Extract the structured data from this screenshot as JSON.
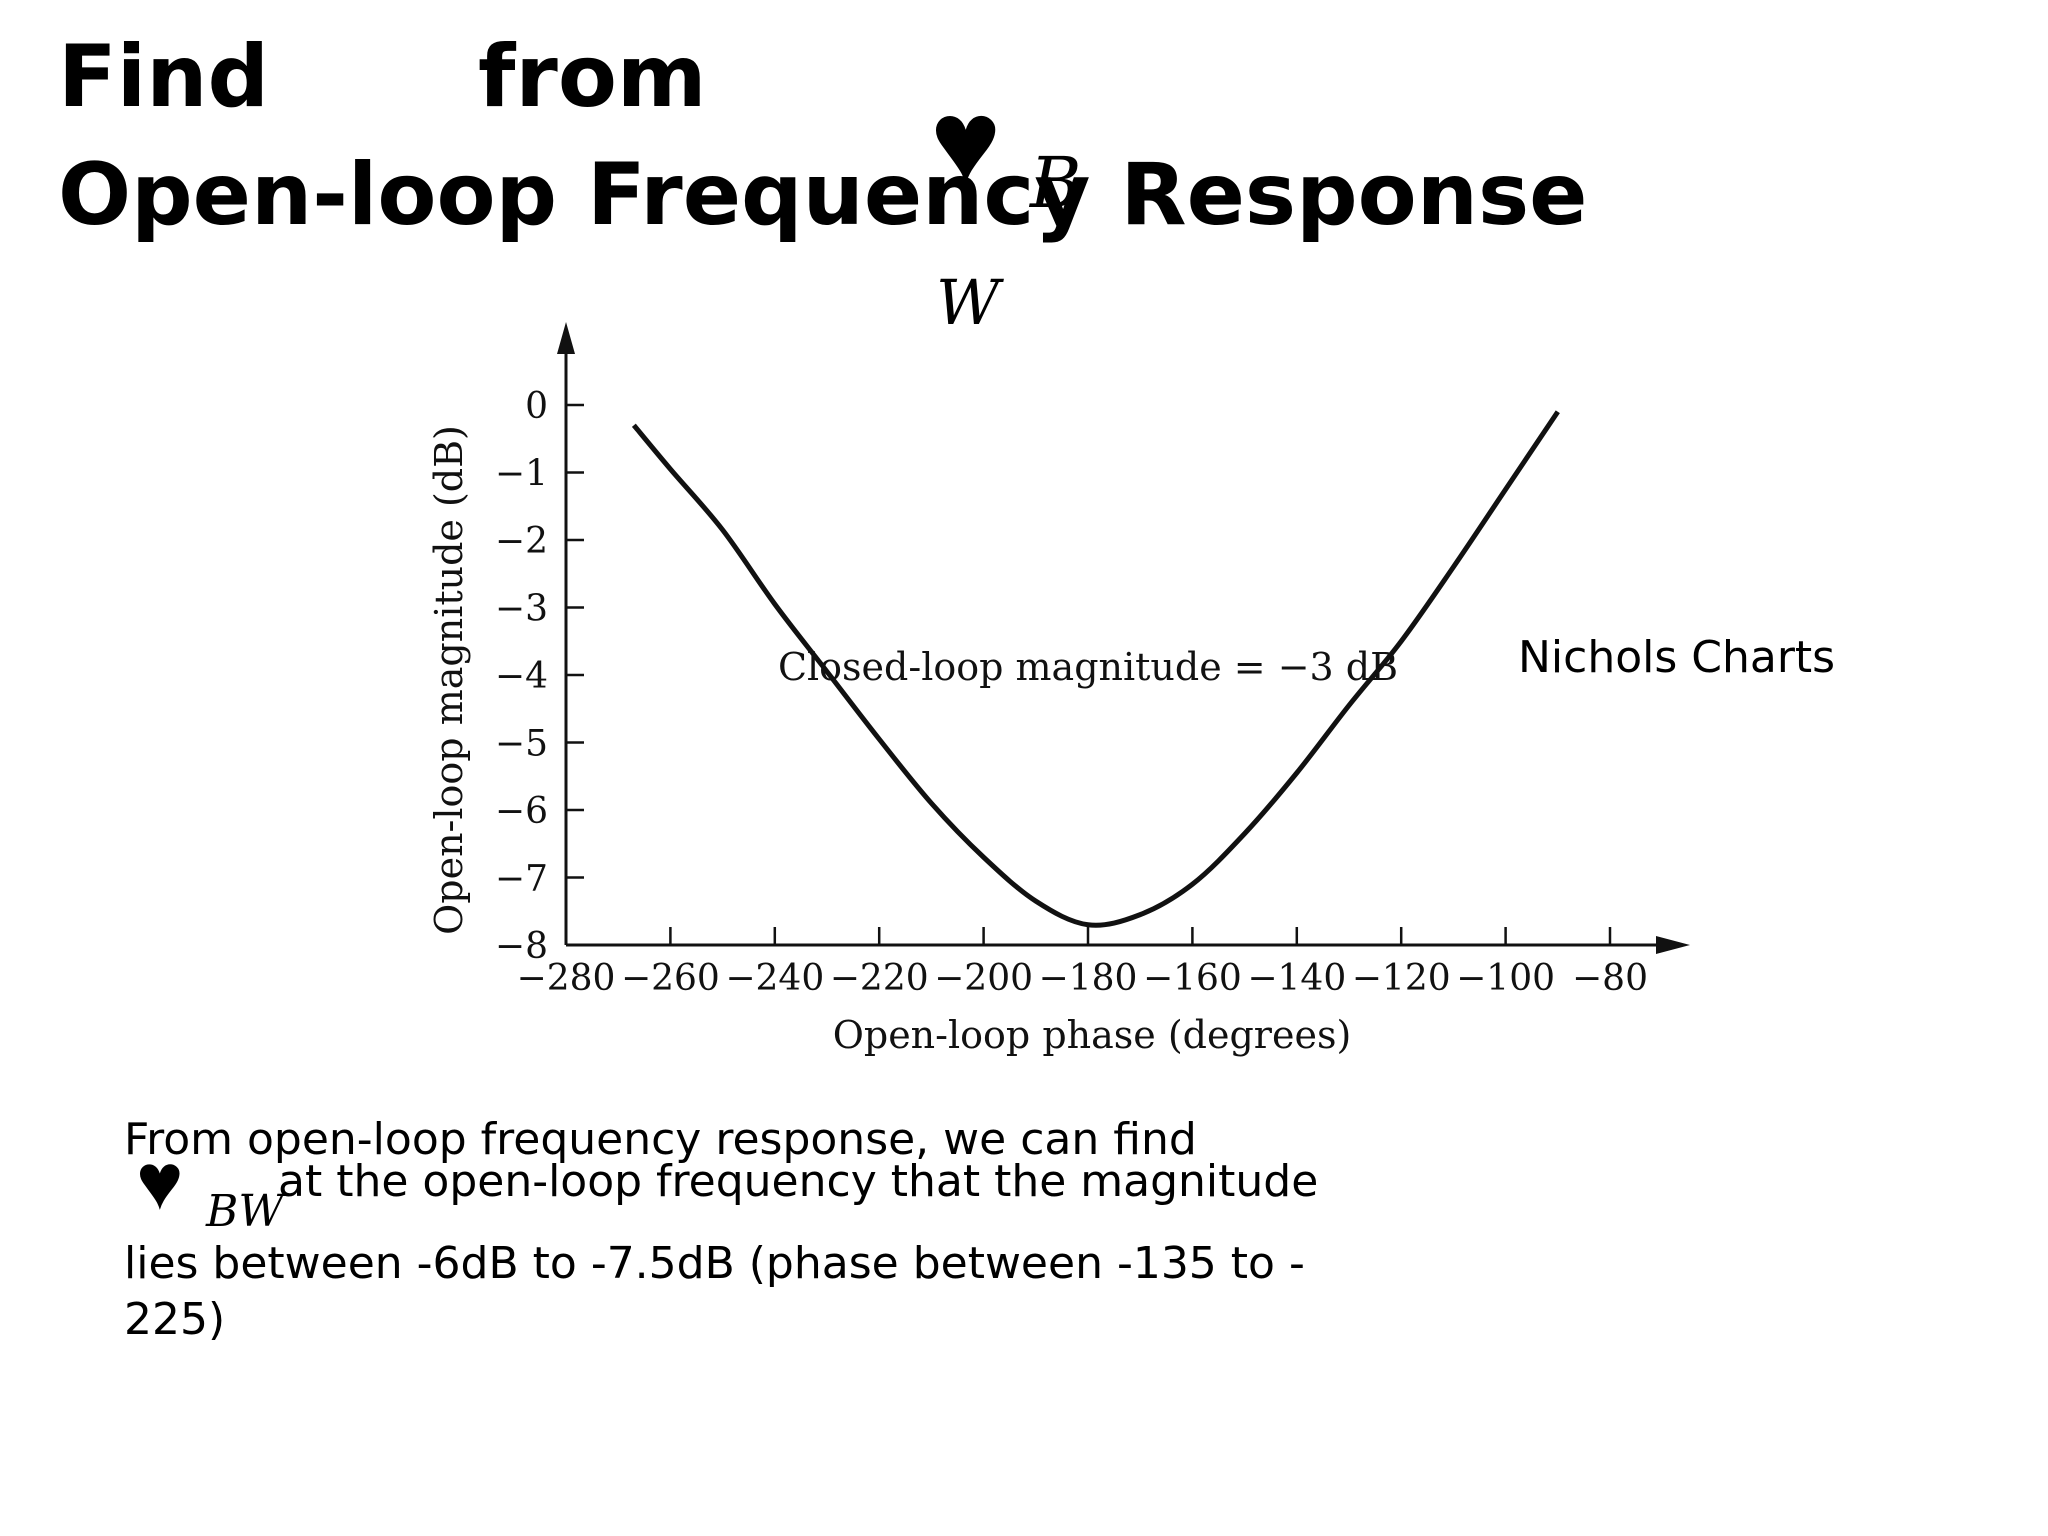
{
  "slide": {
    "title_word_find": "Find",
    "title_word_from": "from",
    "title_line_2": "Open-loop Frequency Response",
    "omega_symbol": "♥",
    "subscript_b": "B",
    "subscript_w": "W",
    "subscript_bw": "BW",
    "nichols_label": "Nichols Charts",
    "para_line_1": "From open-loop frequency response, we can find",
    "para_line_2": "at the open-loop frequency that the magnitude",
    "para_line_3": "lies between -6dB to -7.5dB (phase between -135 to -",
    "para_line_4": "225)"
  },
  "chart_data": {
    "type": "line",
    "title": "",
    "xlabel": "Open-loop phase (degrees)",
    "ylabel": "Open-loop magnitude (dB)",
    "xlim": [
      -280,
      -80
    ],
    "ylim": [
      -8,
      0
    ],
    "x_ticks": [
      -280,
      -260,
      -240,
      -220,
      -200,
      -180,
      -160,
      -140,
      -120,
      -100,
      -80
    ],
    "x_tick_labels": [
      "−280",
      "−260",
      "−240",
      "−220",
      "−200",
      "−180",
      "−160",
      "−140",
      "−120",
      "−100",
      "−80"
    ],
    "y_ticks": [
      0,
      -1,
      -2,
      -3,
      -4,
      -5,
      -6,
      -7,
      -8
    ],
    "y_tick_labels": [
      "0",
      "−1",
      "−2",
      "−3",
      "−4",
      "−5",
      "−6",
      "−7",
      "−8"
    ],
    "annotation": "Closed-loop magnitude = −3 dB",
    "series": [
      {
        "x": [
          -267,
          -260,
          -250,
          -240,
          -230,
          -220,
          -210,
          -200,
          -190,
          -180,
          -170,
          -160,
          -150,
          -140,
          -130,
          -120,
          -110,
          -100,
          -90
        ],
        "y": [
          -0.3,
          -0.95,
          -1.85,
          -2.95,
          -3.95,
          -4.95,
          -5.9,
          -6.7,
          -7.35,
          -7.7,
          -7.55,
          -7.1,
          -6.35,
          -5.45,
          -4.45,
          -3.5,
          -2.4,
          -1.25,
          -0.1
        ]
      }
    ]
  }
}
